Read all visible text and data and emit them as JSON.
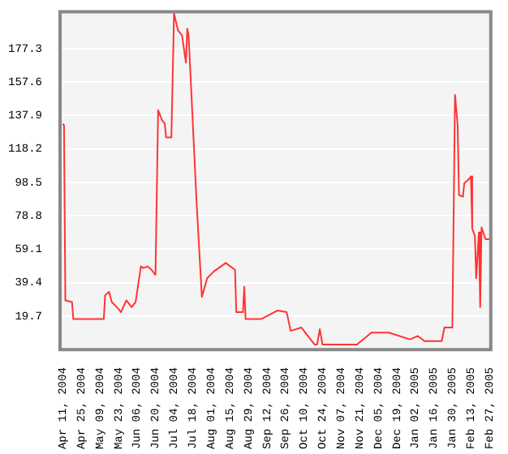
{
  "chart_data": {
    "type": "line",
    "x": [
      "2004-04-11",
      "2004-04-12",
      "2004-04-13",
      "2004-04-18",
      "2004-04-19",
      "2004-05-12",
      "2004-05-13",
      "2004-05-16",
      "2004-05-18",
      "2004-05-23",
      "2004-05-25",
      "2004-05-29",
      "2004-06-02",
      "2004-06-05",
      "2004-06-09",
      "2004-06-11",
      "2004-06-14",
      "2004-06-17",
      "2004-06-20",
      "2004-06-22",
      "2004-06-25",
      "2004-06-27",
      "2004-06-28",
      "2004-07-02",
      "2004-07-04",
      "2004-07-07",
      "2004-07-10",
      "2004-07-13",
      "2004-07-14",
      "2004-07-15",
      "2004-07-21",
      "2004-07-25",
      "2004-07-29",
      "2004-08-03",
      "2004-08-12",
      "2004-08-19",
      "2004-08-20",
      "2004-08-25",
      "2004-08-26",
      "2004-08-27",
      "2004-09-08",
      "2004-09-20",
      "2004-09-27",
      "2004-09-30",
      "2004-10-08",
      "2004-10-18",
      "2004-10-20",
      "2004-10-22",
      "2004-10-24",
      "2004-11-03",
      "2004-11-19",
      "2004-11-30",
      "2004-12-13",
      "2004-12-29",
      "2005-01-04",
      "2005-01-09",
      "2005-01-22",
      "2005-01-24",
      "2005-01-30",
      "2005-02-01",
      "2005-02-03",
      "2005-02-04",
      "2005-02-07",
      "2005-02-08",
      "2005-02-11",
      "2005-02-13",
      "2005-02-14",
      "2005-02-16",
      "2005-02-17",
      "2005-02-19",
      "2005-02-20",
      "2005-02-21",
      "2005-02-24",
      "2005-02-27"
    ],
    "series": [
      {
        "color": "#ff3333",
        "values": [
          133,
          132,
          29,
          28,
          18,
          18,
          32,
          34,
          28,
          24,
          22,
          29,
          25,
          28,
          49,
          48,
          49,
          47,
          44,
          141,
          135,
          133,
          125,
          125,
          198,
          188,
          185,
          169,
          189,
          185,
          87,
          31,
          42,
          46,
          51,
          47,
          22,
          22,
          37,
          18,
          18,
          23,
          22,
          11,
          13,
          3,
          3,
          12,
          3,
          3,
          3,
          10,
          10,
          6,
          8,
          5,
          5,
          13,
          13,
          150,
          132,
          91,
          90,
          98,
          100,
          102,
          71,
          67,
          42,
          69,
          25,
          72,
          65,
          65
        ]
      }
    ],
    "xlim": [
      "2004-04-09",
      "2005-02-28"
    ],
    "xticks": [
      {
        "value": "2004-04-11",
        "label": "Apr 11, 2004"
      },
      {
        "value": "2004-04-25",
        "label": "Apr 25, 2004"
      },
      {
        "value": "2004-05-09",
        "label": "May 09, 2004"
      },
      {
        "value": "2004-05-23",
        "label": "May 23, 2004"
      },
      {
        "value": "2004-06-06",
        "label": "Jun 06, 2004"
      },
      {
        "value": "2004-06-20",
        "label": "Jun 20, 2004"
      },
      {
        "value": "2004-07-04",
        "label": "Jul 04, 2004"
      },
      {
        "value": "2004-07-18",
        "label": "Jul 18, 2004"
      },
      {
        "value": "2004-08-01",
        "label": "Aug 01, 2004"
      },
      {
        "value": "2004-08-15",
        "label": "Aug 15, 2004"
      },
      {
        "value": "2004-08-29",
        "label": "Aug 29, 2004"
      },
      {
        "value": "2004-09-12",
        "label": "Sep 12, 2004"
      },
      {
        "value": "2004-09-26",
        "label": "Sep 26, 2004"
      },
      {
        "value": "2004-10-10",
        "label": "Oct 10, 2004"
      },
      {
        "value": "2004-10-24",
        "label": "Oct 24, 2004"
      },
      {
        "value": "2004-11-07",
        "label": "Nov 07, 2004"
      },
      {
        "value": "2004-11-21",
        "label": "Nov 21, 2004"
      },
      {
        "value": "2004-12-05",
        "label": "Dec 05, 2004"
      },
      {
        "value": "2004-12-19",
        "label": "Dec 19, 2004"
      },
      {
        "value": "2005-01-02",
        "label": "Jan 02, 2005"
      },
      {
        "value": "2005-01-16",
        "label": "Jan 16, 2005"
      },
      {
        "value": "2005-01-30",
        "label": "Jan 30, 2005"
      },
      {
        "value": "2005-02-13",
        "label": "Feb 13, 2005"
      },
      {
        "value": "2005-02-27",
        "label": "Feb 27, 2005"
      }
    ],
    "ylim": [
      0,
      199
    ],
    "yticks": [
      19.7,
      39.4,
      59.1,
      78.8,
      98.5,
      118.2,
      137.9,
      157.6,
      177.3
    ],
    "grid": "y"
  }
}
